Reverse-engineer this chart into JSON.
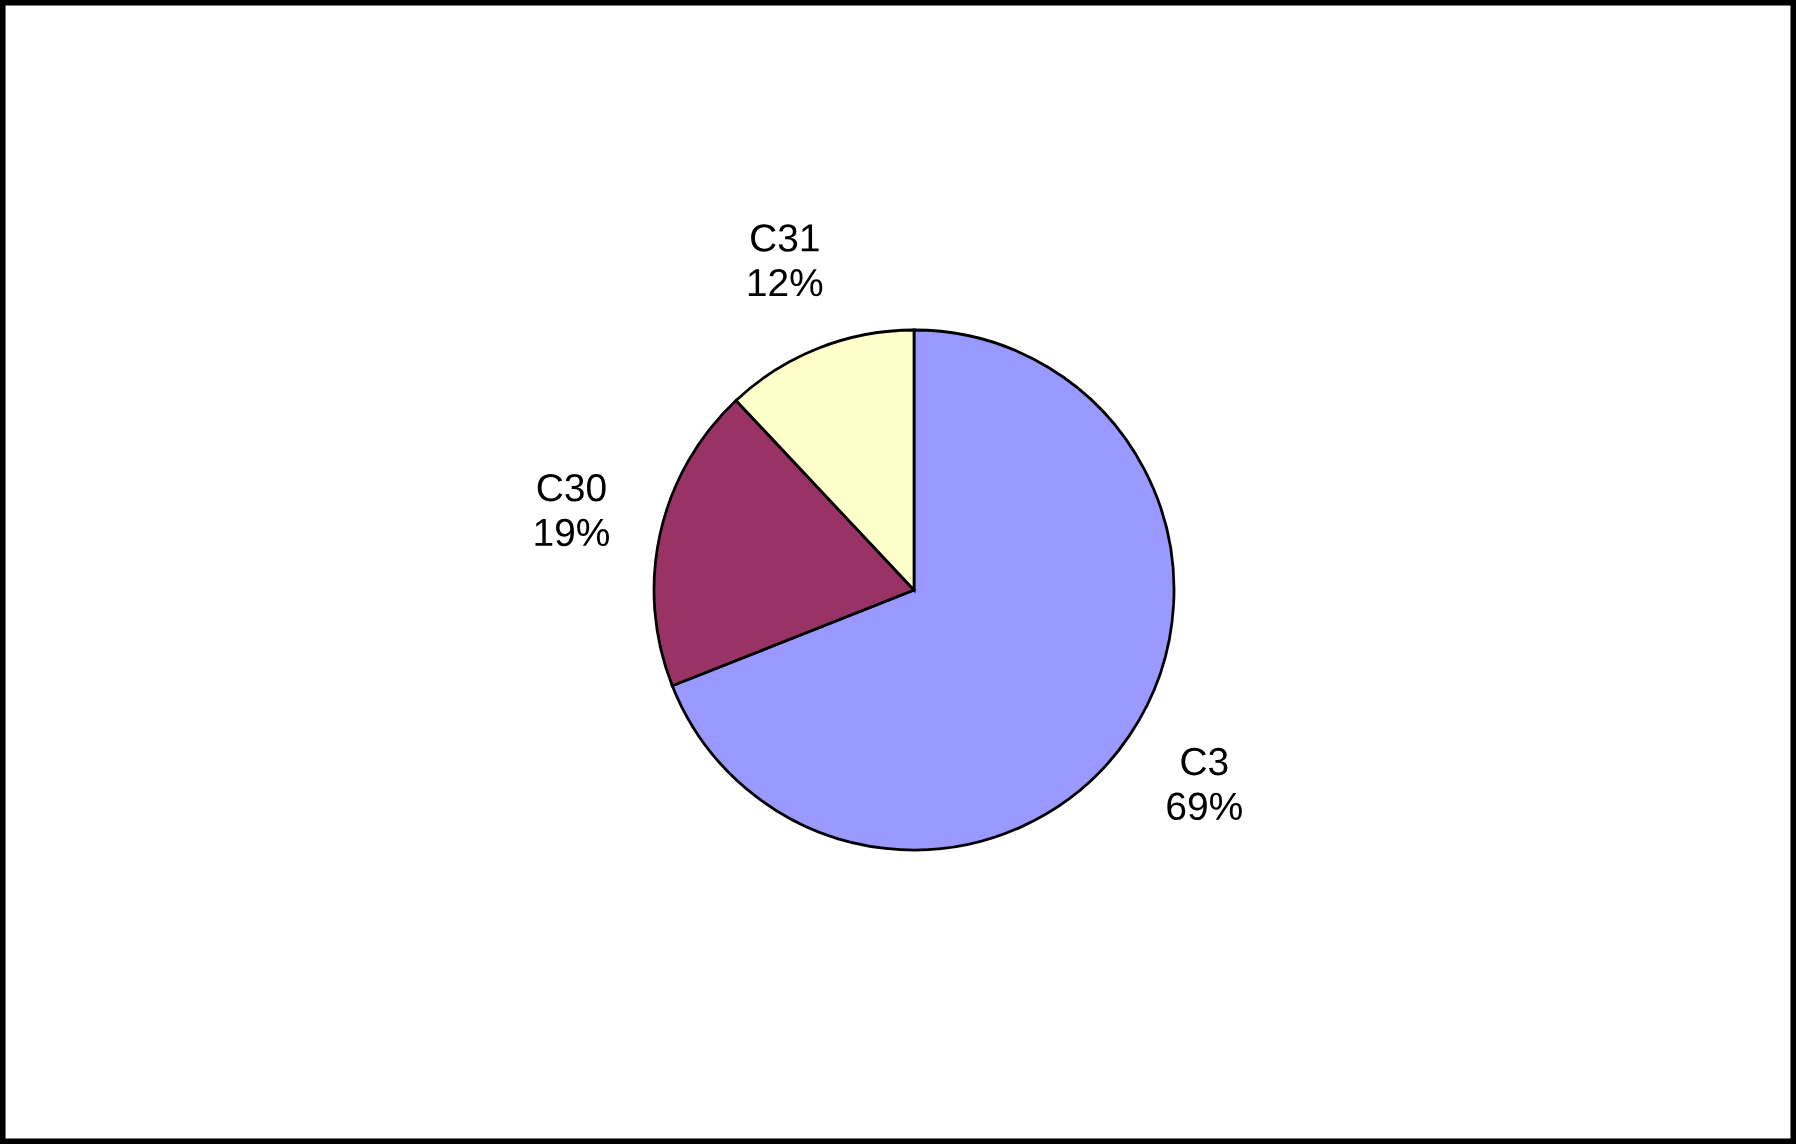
{
  "chart_data": {
    "type": "pie",
    "categories": [
      "C3",
      "C30",
      "C31"
    ],
    "values": [
      69,
      19,
      12
    ],
    "colors": [
      "#9999ff",
      "#993366",
      "#ffffcc"
    ],
    "value_labels": [
      "69%",
      "19%",
      "12%"
    ],
    "legend": false
  }
}
